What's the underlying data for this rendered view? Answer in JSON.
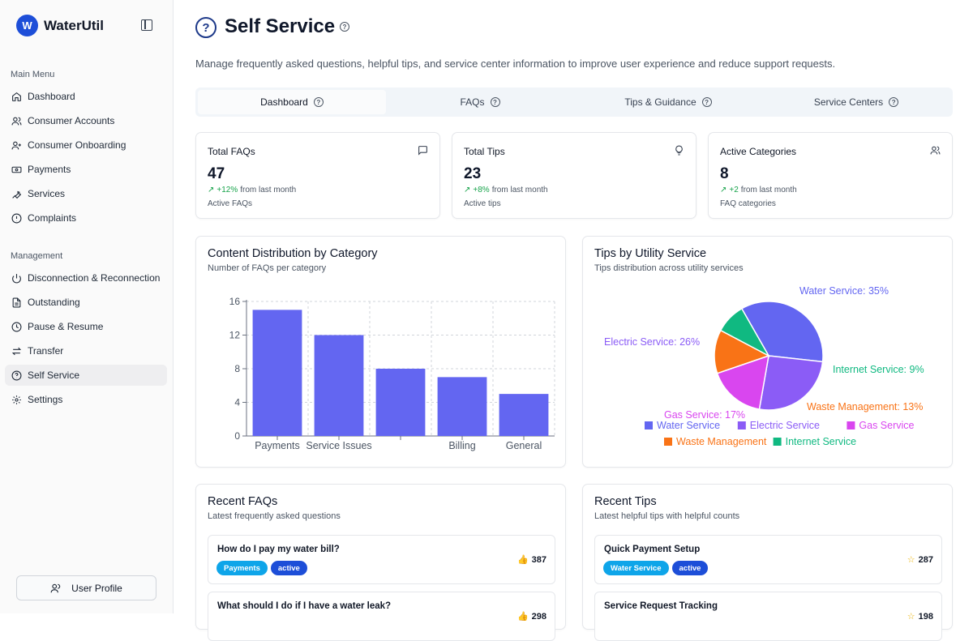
{
  "app": {
    "logo_letter": "W",
    "name": "WaterUtil"
  },
  "sidebar": {
    "main_menu_label": "Main Menu",
    "management_label": "Management",
    "main_items": [
      {
        "label": "Dashboard",
        "icon": "home-icon"
      },
      {
        "label": "Consumer Accounts",
        "icon": "users-icon"
      },
      {
        "label": "Consumer Onboarding",
        "icon": "user-plus-icon"
      },
      {
        "label": "Payments",
        "icon": "banknote-icon"
      },
      {
        "label": "Services",
        "icon": "wrench-icon"
      },
      {
        "label": "Complaints",
        "icon": "alert-circle-icon"
      }
    ],
    "management_items": [
      {
        "label": "Disconnection & Reconnection",
        "icon": "power-icon"
      },
      {
        "label": "Outstanding",
        "icon": "file-text-icon"
      },
      {
        "label": "Pause & Resume",
        "icon": "clock-icon"
      },
      {
        "label": "Transfer",
        "icon": "arrows-swap-icon"
      },
      {
        "label": "Self Service",
        "icon": "help-circle-icon",
        "active": true
      },
      {
        "label": "Settings",
        "icon": "gear-icon"
      }
    ],
    "profile_label": "User Profile"
  },
  "page": {
    "title": "Self Service",
    "description": "Manage frequently asked questions, helpful tips, and service center information to improve user experience and reduce support requests."
  },
  "tabs": [
    {
      "label": "Dashboard",
      "active": true
    },
    {
      "label": "FAQs",
      "active": false
    },
    {
      "label": "Tips & Guidance",
      "active": false
    },
    {
      "label": "Service Centers",
      "active": false
    }
  ],
  "stats": [
    {
      "title": "Total FAQs",
      "value": "47",
      "change": "+12%",
      "change_text": "from last month",
      "sub": "Active FAQs",
      "icon": "message-square-icon"
    },
    {
      "title": "Total Tips",
      "value": "23",
      "change": "+8%",
      "change_text": "from last month",
      "sub": "Active tips",
      "icon": "lightbulb-icon"
    },
    {
      "title": "Active Categories",
      "value": "8",
      "change": "+2",
      "change_text": "from last month",
      "sub": "FAQ categories",
      "icon": "users-icon"
    }
  ],
  "content_chart": {
    "title": "Content Distribution by Category",
    "subtitle": "Number of FAQs per category"
  },
  "tips_chart": {
    "title": "Tips by Utility Service",
    "subtitle": "Tips distribution across utility services"
  },
  "chart_data": [
    {
      "type": "bar",
      "title": "Content Distribution by Category",
      "categories": [
        "Payments",
        "Service Issues",
        "",
        "Billing",
        "General"
      ],
      "values": [
        15,
        12,
        8,
        7,
        5
      ],
      "ylim": [
        0,
        16
      ],
      "yticks": [
        0,
        4,
        8,
        12,
        16
      ],
      "grid": true,
      "color": "#6366f1"
    },
    {
      "type": "pie",
      "title": "Tips by Utility Service",
      "slices": [
        {
          "name": "Water Service",
          "value": 35,
          "label": "Water Service: 35%",
          "color": "#6366f1"
        },
        {
          "name": "Electric Service",
          "value": 26,
          "label": "Electric Service: 26%",
          "color": "#8b5cf6"
        },
        {
          "name": "Gas Service",
          "value": 17,
          "label": "Gas Service: 17%",
          "color": "#d946ef"
        },
        {
          "name": "Waste Management",
          "value": 13,
          "label": "Waste Management: 13%",
          "color": "#f97316"
        },
        {
          "name": "Internet Service",
          "value": 9,
          "label": "Internet Service: 9%",
          "color": "#10b981"
        }
      ],
      "legend": "bottom"
    }
  ],
  "recent_faqs": {
    "title": "Recent FAQs",
    "subtitle": "Latest frequently asked questions",
    "items": [
      {
        "question": "How do I pay my water bill?",
        "category": "Payments",
        "status": "active",
        "count": "387"
      },
      {
        "question": "What should I do if I have a water leak?",
        "category": "",
        "status": "",
        "count": "298"
      }
    ]
  },
  "recent_tips": {
    "title": "Recent Tips",
    "subtitle": "Latest helpful tips with helpful counts",
    "items": [
      {
        "title": "Quick Payment Setup",
        "service": "Water Service",
        "status": "active",
        "count": "287"
      },
      {
        "title": "Service Request Tracking",
        "service": "",
        "status": "",
        "count": "198"
      }
    ]
  },
  "colors": {
    "brand": "#1d4ed8",
    "category_badge": "#0ea5e9",
    "status_badge": "#1d4ed8",
    "bar": "#6366f1",
    "trend_up": "#16a34a"
  }
}
